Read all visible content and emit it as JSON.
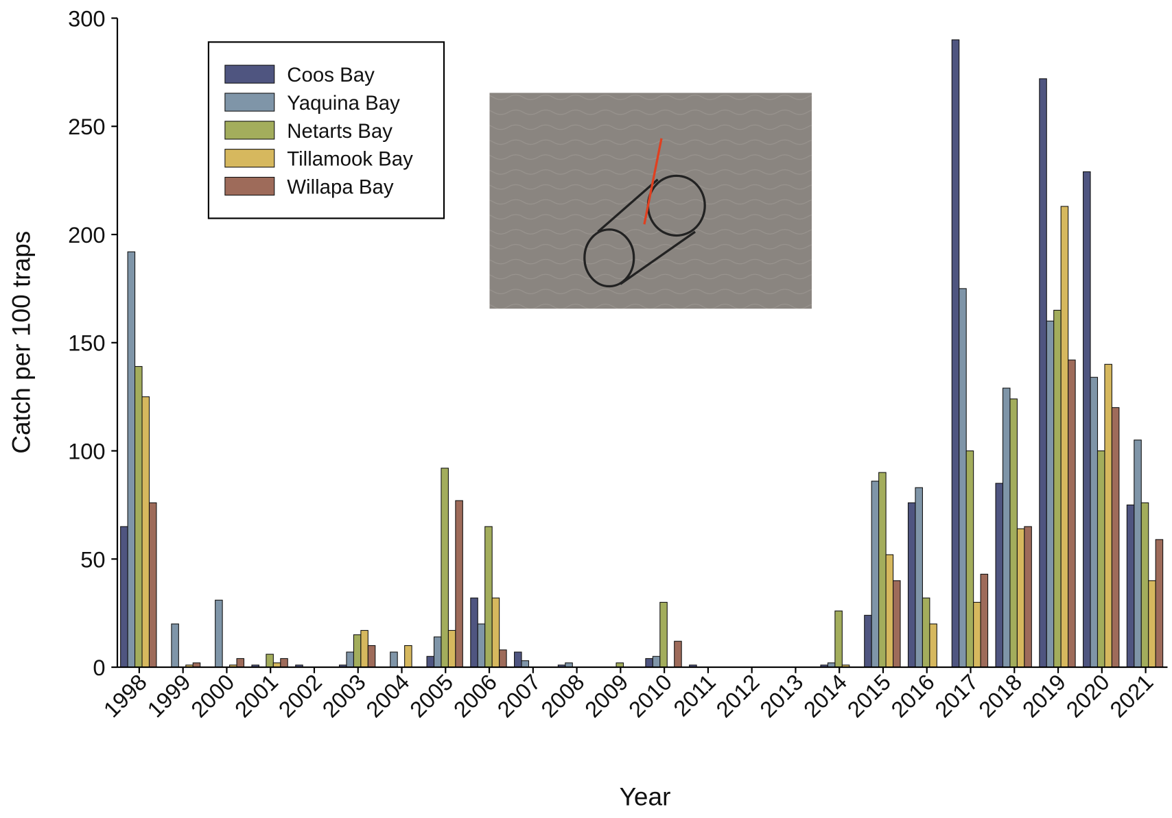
{
  "chart_data": {
    "type": "bar",
    "x_label": "Year",
    "y_label": "Catch per 100 traps",
    "categories": [
      "1998",
      "1999",
      "2000",
      "2001",
      "2002",
      "2003",
      "2004",
      "2005",
      "2006",
      "2007",
      "2008",
      "2009",
      "2010",
      "2011",
      "2012",
      "2013",
      "2014",
      "2015",
      "2016",
      "2017",
      "2018",
      "2019",
      "2020",
      "2021"
    ],
    "series": [
      {
        "name": "Coos Bay",
        "color": "#4f5580",
        "values": [
          65,
          0,
          0,
          1,
          1,
          1,
          0,
          5,
          32,
          7,
          1,
          0,
          4,
          1,
          0,
          0,
          1,
          24,
          76,
          290,
          85,
          272,
          229,
          75
        ]
      },
      {
        "name": "Yaquina Bay",
        "color": "#7f95a8",
        "values": [
          192,
          20,
          31,
          0,
          0,
          7,
          7,
          14,
          20,
          3,
          2,
          0,
          5,
          0,
          0,
          0,
          2,
          86,
          83,
          175,
          129,
          160,
          134,
          105
        ]
      },
      {
        "name": "Netarts Bay",
        "color": "#a3ad5c",
        "values": [
          139,
          0,
          0,
          6,
          0,
          15,
          0,
          92,
          65,
          0,
          0,
          2,
          30,
          0,
          0,
          0,
          26,
          90,
          32,
          100,
          124,
          165,
          100,
          76
        ]
      },
      {
        "name": "Tillamook Bay",
        "color": "#d6b85e",
        "values": [
          125,
          1,
          1,
          2,
          0,
          17,
          10,
          17,
          32,
          0,
          0,
          0,
          0,
          0,
          0,
          0,
          1,
          52,
          20,
          30,
          64,
          213,
          140,
          40
        ]
      },
      {
        "name": "Willapa Bay",
        "color": "#9e6b5a",
        "values": [
          76,
          2,
          4,
          4,
          0,
          10,
          0,
          77,
          8,
          0,
          0,
          0,
          12,
          0,
          0,
          0,
          0,
          40,
          0,
          43,
          65,
          142,
          120,
          59
        ]
      }
    ],
    "ylim": [
      0,
      300
    ],
    "yticks": [
      0,
      50,
      100,
      150,
      200,
      250,
      300
    ],
    "grid": false,
    "legend": "upper left"
  }
}
